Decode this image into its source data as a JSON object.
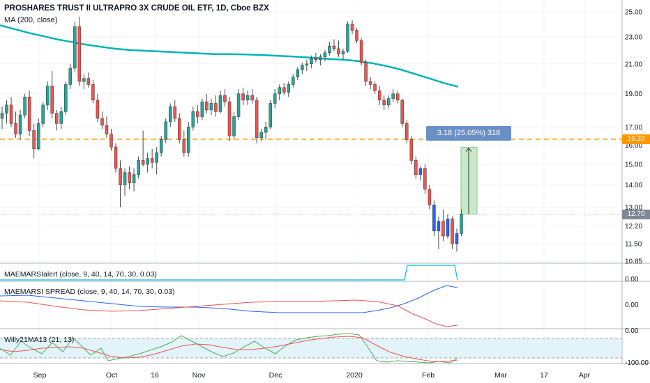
{
  "header": {
    "title": "PROSHARES TRUST II ULTRAPRO 3X CRUDE OIL ETF, 1D, Cboe BZX",
    "ma_label": "MA (200, close)"
  },
  "price_axis": {
    "labels": [
      "25.00",
      "23.00",
      "21.00",
      "19.00",
      "17.00",
      "16.00",
      "15.00",
      "14.00",
      "13.00",
      "12.20",
      "11.50",
      "10.85"
    ],
    "tag_orange": "16.32",
    "tag_gray": "12.70"
  },
  "time_axis": {
    "labels": [
      "Sep",
      "Oct",
      "16",
      "Nov",
      "Dec",
      "2020",
      "Feb",
      "Mar",
      "17",
      "Apr"
    ]
  },
  "measure_tool": {
    "label": "3.18 (25.05%) 318"
  },
  "panes": [
    {
      "label": "MAEMARSIalert (close, 9, 40, 14, 70, 30, 0.03)",
      "axis_labels": [
        "0.00"
      ]
    },
    {
      "label": "MAEMARSI SPREAD (close, 9, 40, 14, 70, 30, 0.03)",
      "axis_labels": [
        "0.00"
      ]
    },
    {
      "label": "Willy21MA13 (21, 13)",
      "axis_labels": [
        "0.00",
        "-100.00"
      ]
    }
  ],
  "colors": {
    "up": "#26a69a",
    "down": "#ef5350",
    "ma": "#00b4b4",
    "orange_line": "#ff9800",
    "blue_candle": "#2962ff",
    "measure_fill": "#b2dfb2",
    "cyan_alert": "#00bcd4",
    "spread_blue": "#2962ff",
    "spread_red": "#ef5350",
    "willy_green": "#4caf50",
    "willy_red": "#ef5350",
    "band": "#d6eef8"
  },
  "chart_data": {
    "type": "candlestick",
    "title": "PROSHARES TRUST II ULTRAPRO 3X CRUDE OIL ETF, 1D, Cboe BZX",
    "ylim": [
      10.85,
      25.0
    ],
    "y_scale": "log",
    "horizontal_line": 16.32,
    "last_price": 12.7,
    "ma200": [
      23.9,
      23.6,
      23.3,
      23.05,
      22.8,
      22.6,
      22.4,
      22.25,
      22.1,
      22.0,
      21.95,
      21.9,
      21.85,
      21.8,
      21.75,
      21.7,
      21.7,
      21.68,
      21.65,
      21.6,
      21.55,
      21.5,
      21.42,
      21.35,
      21.3,
      21.2,
      21.05,
      20.85,
      20.6,
      20.3,
      20.0,
      19.7,
      19.45
    ],
    "candles": [
      {
        "o": 17.5,
        "h": 18.2,
        "l": 16.9,
        "c": 17.8
      },
      {
        "o": 17.8,
        "h": 18.6,
        "l": 17.2,
        "c": 18.3
      },
      {
        "o": 18.3,
        "h": 18.8,
        "l": 17.0,
        "c": 17.2
      },
      {
        "o": 17.2,
        "h": 17.9,
        "l": 16.4,
        "c": 16.6
      },
      {
        "o": 16.6,
        "h": 18.0,
        "l": 16.3,
        "c": 17.7
      },
      {
        "o": 17.7,
        "h": 19.0,
        "l": 17.5,
        "c": 18.8
      },
      {
        "o": 18.8,
        "h": 19.2,
        "l": 16.5,
        "c": 16.8
      },
      {
        "o": 16.8,
        "h": 17.2,
        "l": 15.3,
        "c": 15.8
      },
      {
        "o": 15.8,
        "h": 17.5,
        "l": 15.7,
        "c": 17.2
      },
      {
        "o": 17.2,
        "h": 18.5,
        "l": 17.0,
        "c": 18.3
      },
      {
        "o": 18.3,
        "h": 19.8,
        "l": 18.0,
        "c": 19.5
      },
      {
        "o": 19.5,
        "h": 20.5,
        "l": 17.5,
        "c": 17.8
      },
      {
        "o": 17.8,
        "h": 18.0,
        "l": 16.8,
        "c": 17.2
      },
      {
        "o": 17.2,
        "h": 18.2,
        "l": 16.9,
        "c": 17.9
      },
      {
        "o": 17.9,
        "h": 19.8,
        "l": 17.7,
        "c": 19.6
      },
      {
        "o": 19.6,
        "h": 21.0,
        "l": 19.3,
        "c": 20.7
      },
      {
        "o": 20.7,
        "h": 24.2,
        "l": 20.4,
        "c": 23.8
      },
      {
        "o": 23.8,
        "h": 24.6,
        "l": 19.5,
        "c": 19.8
      },
      {
        "o": 19.8,
        "h": 20.3,
        "l": 19.3,
        "c": 20.0
      },
      {
        "o": 20.0,
        "h": 20.4,
        "l": 19.4,
        "c": 19.6
      },
      {
        "o": 19.6,
        "h": 19.9,
        "l": 18.4,
        "c": 18.6
      },
      {
        "o": 18.6,
        "h": 19.0,
        "l": 17.3,
        "c": 17.5
      },
      {
        "o": 17.5,
        "h": 17.9,
        "l": 16.9,
        "c": 17.1
      },
      {
        "o": 17.1,
        "h": 17.6,
        "l": 16.4,
        "c": 16.6
      },
      {
        "o": 16.6,
        "h": 16.9,
        "l": 15.7,
        "c": 15.9
      },
      {
        "o": 15.9,
        "h": 16.1,
        "l": 14.6,
        "c": 14.8
      },
      {
        "o": 14.8,
        "h": 15.2,
        "l": 13.0,
        "c": 14.0
      },
      {
        "o": 14.0,
        "h": 14.8,
        "l": 13.5,
        "c": 14.6
      },
      {
        "o": 14.6,
        "h": 14.9,
        "l": 13.8,
        "c": 14.1
      },
      {
        "o": 14.1,
        "h": 14.8,
        "l": 13.7,
        "c": 14.5
      },
      {
        "o": 14.5,
        "h": 15.4,
        "l": 14.3,
        "c": 15.2
      },
      {
        "o": 15.2,
        "h": 16.8,
        "l": 14.9,
        "c": 15.0
      },
      {
        "o": 15.0,
        "h": 15.6,
        "l": 14.6,
        "c": 15.3
      },
      {
        "o": 15.3,
        "h": 15.8,
        "l": 14.8,
        "c": 15.1
      },
      {
        "o": 15.1,
        "h": 15.9,
        "l": 14.5,
        "c": 15.6
      },
      {
        "o": 15.6,
        "h": 16.5,
        "l": 15.4,
        "c": 16.3
      },
      {
        "o": 16.3,
        "h": 17.5,
        "l": 16.1,
        "c": 17.3
      },
      {
        "o": 17.3,
        "h": 18.4,
        "l": 17.0,
        "c": 18.2
      },
      {
        "o": 18.2,
        "h": 18.6,
        "l": 17.3,
        "c": 17.5
      },
      {
        "o": 17.5,
        "h": 17.8,
        "l": 16.1,
        "c": 16.3
      },
      {
        "o": 16.3,
        "h": 16.8,
        "l": 15.4,
        "c": 15.6
      },
      {
        "o": 15.6,
        "h": 17.3,
        "l": 15.4,
        "c": 17.0
      },
      {
        "o": 17.0,
        "h": 18.2,
        "l": 16.8,
        "c": 17.9
      },
      {
        "o": 17.9,
        "h": 18.3,
        "l": 17.2,
        "c": 17.6
      },
      {
        "o": 17.6,
        "h": 18.7,
        "l": 17.4,
        "c": 18.5
      },
      {
        "o": 18.5,
        "h": 19.0,
        "l": 17.8,
        "c": 18.0
      },
      {
        "o": 18.0,
        "h": 18.7,
        "l": 17.7,
        "c": 18.4
      },
      {
        "o": 18.4,
        "h": 18.9,
        "l": 17.6,
        "c": 17.9
      },
      {
        "o": 17.9,
        "h": 19.2,
        "l": 17.8,
        "c": 18.9
      },
      {
        "o": 18.9,
        "h": 19.3,
        "l": 18.2,
        "c": 18.5
      },
      {
        "o": 18.5,
        "h": 18.8,
        "l": 16.2,
        "c": 16.5
      },
      {
        "o": 16.5,
        "h": 17.9,
        "l": 16.3,
        "c": 17.6
      },
      {
        "o": 17.6,
        "h": 19.3,
        "l": 17.4,
        "c": 19.0
      },
      {
        "o": 19.0,
        "h": 19.4,
        "l": 18.3,
        "c": 18.6
      },
      {
        "o": 18.6,
        "h": 19.2,
        "l": 18.3,
        "c": 18.9
      },
      {
        "o": 18.9,
        "h": 19.3,
        "l": 18.4,
        "c": 18.6
      },
      {
        "o": 18.6,
        "h": 18.8,
        "l": 16.1,
        "c": 16.4
      },
      {
        "o": 16.4,
        "h": 16.9,
        "l": 16.2,
        "c": 16.7
      },
      {
        "o": 16.7,
        "h": 17.3,
        "l": 16.3,
        "c": 17.0
      },
      {
        "o": 17.0,
        "h": 18.6,
        "l": 16.9,
        "c": 18.4
      },
      {
        "o": 18.4,
        "h": 19.3,
        "l": 18.1,
        "c": 19.0
      },
      {
        "o": 19.0,
        "h": 19.6,
        "l": 18.6,
        "c": 19.4
      },
      {
        "o": 19.4,
        "h": 19.7,
        "l": 18.9,
        "c": 19.1
      },
      {
        "o": 19.1,
        "h": 19.8,
        "l": 18.8,
        "c": 19.6
      },
      {
        "o": 19.6,
        "h": 20.3,
        "l": 19.4,
        "c": 20.1
      },
      {
        "o": 20.1,
        "h": 20.8,
        "l": 19.9,
        "c": 20.6
      },
      {
        "o": 20.6,
        "h": 21.1,
        "l": 20.3,
        "c": 20.9
      },
      {
        "o": 20.9,
        "h": 21.3,
        "l": 20.5,
        "c": 21.0
      },
      {
        "o": 21.0,
        "h": 21.6,
        "l": 20.7,
        "c": 21.4
      },
      {
        "o": 21.4,
        "h": 21.8,
        "l": 21.1,
        "c": 21.3
      },
      {
        "o": 21.3,
        "h": 21.7,
        "l": 20.9,
        "c": 21.5
      },
      {
        "o": 21.5,
        "h": 22.0,
        "l": 21.2,
        "c": 21.8
      },
      {
        "o": 21.8,
        "h": 22.6,
        "l": 21.6,
        "c": 22.3
      },
      {
        "o": 22.3,
        "h": 22.8,
        "l": 21.9,
        "c": 22.1
      },
      {
        "o": 22.1,
        "h": 22.7,
        "l": 21.5,
        "c": 21.7
      },
      {
        "o": 21.7,
        "h": 22.1,
        "l": 21.3,
        "c": 21.9
      },
      {
        "o": 21.9,
        "h": 24.2,
        "l": 21.8,
        "c": 24.0
      },
      {
        "o": 24.0,
        "h": 24.3,
        "l": 23.2,
        "c": 23.5
      },
      {
        "o": 23.5,
        "h": 23.7,
        "l": 22.5,
        "c": 22.7
      },
      {
        "o": 22.7,
        "h": 22.9,
        "l": 20.9,
        "c": 21.1
      },
      {
        "o": 21.1,
        "h": 21.3,
        "l": 19.5,
        "c": 19.8
      },
      {
        "o": 19.8,
        "h": 20.1,
        "l": 19.3,
        "c": 19.6
      },
      {
        "o": 19.6,
        "h": 19.8,
        "l": 19.0,
        "c": 19.2
      },
      {
        "o": 19.2,
        "h": 19.5,
        "l": 18.3,
        "c": 18.6
      },
      {
        "o": 18.6,
        "h": 18.9,
        "l": 18.0,
        "c": 18.3
      },
      {
        "o": 18.3,
        "h": 18.9,
        "l": 18.1,
        "c": 18.7
      },
      {
        "o": 18.7,
        "h": 19.3,
        "l": 18.5,
        "c": 19.0
      },
      {
        "o": 19.0,
        "h": 19.2,
        "l": 18.4,
        "c": 18.6
      },
      {
        "o": 18.6,
        "h": 18.7,
        "l": 17.0,
        "c": 17.2
      },
      {
        "o": 17.2,
        "h": 17.4,
        "l": 16.1,
        "c": 16.3
      },
      {
        "o": 16.3,
        "h": 16.5,
        "l": 15.0,
        "c": 15.2
      },
      {
        "o": 15.2,
        "h": 15.4,
        "l": 14.3,
        "c": 14.5
      },
      {
        "o": 14.5,
        "h": 14.9,
        "l": 14.2,
        "c": 14.8,
        "blue": true
      },
      {
        "o": 14.8,
        "h": 15.0,
        "l": 13.6,
        "c": 13.8
      },
      {
        "o": 13.8,
        "h": 14.0,
        "l": 12.9,
        "c": 13.1
      },
      {
        "o": 13.1,
        "h": 13.3,
        "l": 11.8,
        "c": 12.0,
        "blue": true
      },
      {
        "o": 12.0,
        "h": 12.6,
        "l": 11.3,
        "c": 12.4,
        "blue": true
      },
      {
        "o": 12.4,
        "h": 12.9,
        "l": 11.6,
        "c": 11.8
      },
      {
        "o": 11.8,
        "h": 12.7,
        "l": 11.7,
        "c": 12.5,
        "blue": true
      },
      {
        "o": 12.5,
        "h": 12.6,
        "l": 11.3,
        "c": 11.5
      },
      {
        "o": 11.5,
        "h": 12.1,
        "l": 11.2,
        "c": 11.9,
        "blue": true
      },
      {
        "o": 11.9,
        "h": 12.9,
        "l": 11.8,
        "c": 12.7
      }
    ],
    "measure": {
      "from": 12.7,
      "to": 15.88
    }
  }
}
